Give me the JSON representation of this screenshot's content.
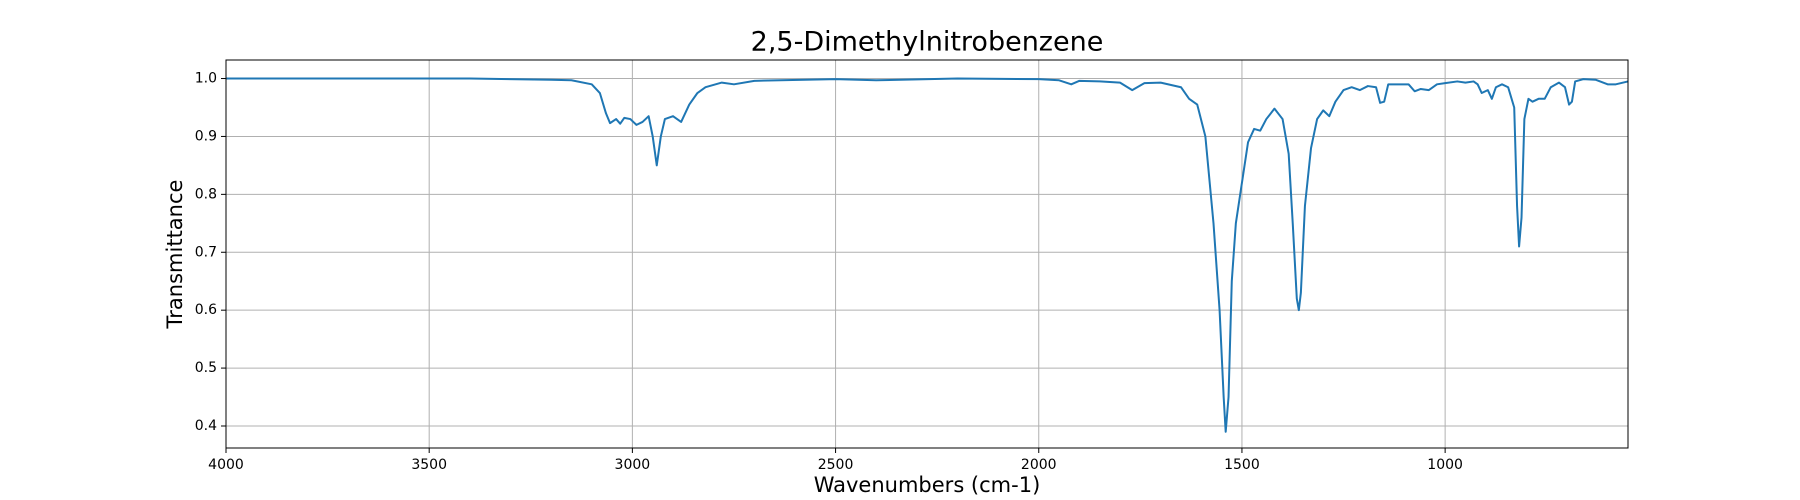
{
  "chart_data": {
    "type": "line",
    "title": "2,5-Dimethylnitrobenzene",
    "xlabel": "Wavenumbers (cm-1)",
    "ylabel": "Transmittance",
    "color": "#1f77b4",
    "grid": true,
    "xlim": [
      4000,
      550
    ],
    "ylim": [
      0.362,
      1.032
    ],
    "xticks": [
      4000,
      3500,
      3000,
      2500,
      2000,
      1500,
      1000
    ],
    "yticks": [
      0.4,
      0.5,
      0.6,
      0.7,
      0.8,
      0.9,
      {
        "value": 1,
        "label": "1.0"
      }
    ],
    "x": [
      4000,
      3800,
      3600,
      3400,
      3200,
      3150,
      3100,
      3080,
      3065,
      3055,
      3040,
      3030,
      3020,
      3005,
      2990,
      2975,
      2960,
      2950,
      2940,
      2930,
      2920,
      2900,
      2880,
      2860,
      2840,
      2820,
      2780,
      2750,
      2700,
      2500,
      2400,
      2200,
      2000,
      1950,
      1920,
      1900,
      1850,
      1800,
      1770,
      1740,
      1700,
      1650,
      1630,
      1610,
      1590,
      1570,
      1555,
      1545,
      1540,
      1533,
      1525,
      1515,
      1500,
      1485,
      1470,
      1455,
      1440,
      1420,
      1400,
      1385,
      1375,
      1365,
      1360,
      1355,
      1345,
      1330,
      1315,
      1300,
      1285,
      1270,
      1250,
      1230,
      1210,
      1190,
      1170,
      1160,
      1150,
      1140,
      1110,
      1090,
      1075,
      1060,
      1040,
      1020,
      1000,
      970,
      950,
      930,
      920,
      910,
      895,
      885,
      875,
      860,
      845,
      830,
      823,
      818,
      812,
      805,
      795,
      785,
      770,
      755,
      740,
      720,
      705,
      695,
      688,
      680,
      660,
      630,
      600,
      580,
      550
    ],
    "values": [
      1.0,
      1.0,
      1.0,
      1.0,
      0.998,
      0.997,
      0.99,
      0.975,
      0.94,
      0.923,
      0.93,
      0.922,
      0.932,
      0.93,
      0.92,
      0.925,
      0.935,
      0.9,
      0.85,
      0.9,
      0.93,
      0.935,
      0.925,
      0.955,
      0.975,
      0.985,
      0.993,
      0.99,
      0.996,
      0.999,
      0.997,
      1.0,
      0.999,
      0.997,
      0.99,
      0.996,
      0.995,
      0.993,
      0.98,
      0.992,
      0.993,
      0.985,
      0.965,
      0.955,
      0.9,
      0.75,
      0.6,
      0.45,
      0.39,
      0.45,
      0.65,
      0.75,
      0.82,
      0.89,
      0.913,
      0.91,
      0.93,
      0.948,
      0.93,
      0.87,
      0.75,
      0.62,
      0.6,
      0.63,
      0.78,
      0.88,
      0.93,
      0.945,
      0.935,
      0.96,
      0.98,
      0.985,
      0.98,
      0.987,
      0.985,
      0.958,
      0.96,
      0.99,
      0.99,
      0.99,
      0.978,
      0.982,
      0.98,
      0.99,
      0.992,
      0.995,
      0.993,
      0.995,
      0.99,
      0.975,
      0.98,
      0.965,
      0.985,
      0.99,
      0.985,
      0.95,
      0.78,
      0.71,
      0.76,
      0.93,
      0.965,
      0.96,
      0.965,
      0.965,
      0.985,
      0.993,
      0.985,
      0.955,
      0.96,
      0.995,
      0.999,
      0.998,
      0.99,
      0.99,
      0.995
    ]
  }
}
